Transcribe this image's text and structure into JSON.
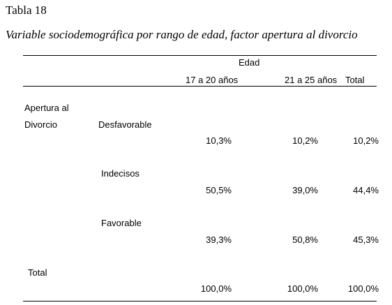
{
  "title": "Tabla 18",
  "caption": "Variable sociodemográfica por rango de edad, factor apertura al divorcio",
  "table": {
    "group_header": "Edad",
    "columns": [
      "17 a 20 años",
      "21 a 25 años",
      "Total"
    ],
    "row_group_label": [
      "Apertura al",
      "Divorcio"
    ],
    "rows": [
      {
        "label": "Desfavorable",
        "values": [
          "10,3%",
          "10,2%",
          "10,2%"
        ]
      },
      {
        "label": "Indecisos",
        "values": [
          "50,5%",
          "39,0%",
          "44,4%"
        ]
      },
      {
        "label": "Favorable",
        "values": [
          "39,3%",
          "50,8%",
          "45,3%"
        ]
      }
    ],
    "total": {
      "label": "Total",
      "values": [
        "100,0%",
        "100,0%",
        "100,0%"
      ]
    }
  }
}
